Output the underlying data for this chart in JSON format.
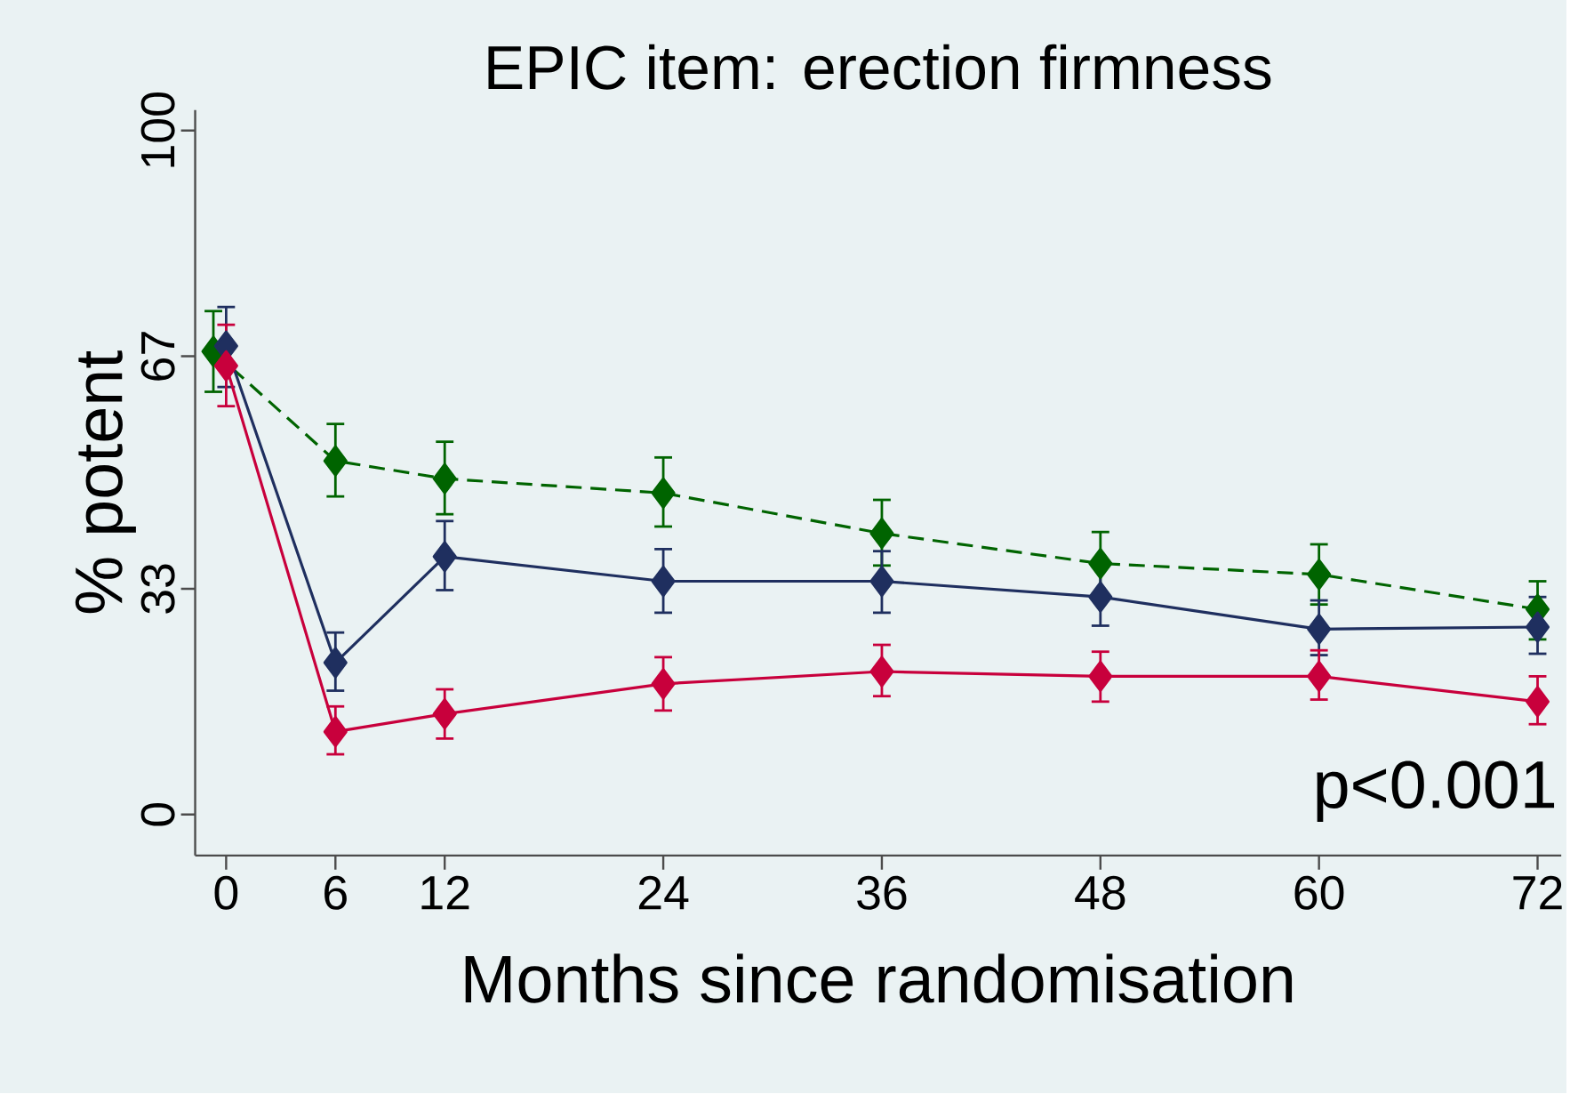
{
  "chart_data": {
    "type": "line",
    "title": "EPIC item: erection firmness",
    "xlabel": "Months since randomisation",
    "ylabel": "% potent",
    "x": [
      0,
      6,
      12,
      24,
      36,
      48,
      60,
      72
    ],
    "series": [
      {
        "color": "#006400",
        "line_style": "dashed",
        "x": [
          -0.7,
          6,
          12,
          24,
          36,
          48,
          60,
          72
        ],
        "values": [
          67.7,
          51.7,
          49.1,
          47.0,
          41.1,
          36.7,
          35.1,
          30.0
        ],
        "errors": [
          [
            61.8,
            73.6
          ],
          [
            46.5,
            57.1
          ],
          [
            43.9,
            54.5
          ],
          [
            42.1,
            52.2
          ],
          [
            36.4,
            46.0
          ],
          [
            32.3,
            41.3
          ],
          [
            30.7,
            39.5
          ],
          [
            25.6,
            34.1
          ]
        ]
      },
      {
        "color": "#1f2f5f",
        "line_style": "solid",
        "values": [
          68.5,
          22.2,
          37.7,
          34.1,
          34.1,
          31.8,
          27.1,
          27.4
        ],
        "errors": [
          [
            62.5,
            74.2
          ],
          [
            18.1,
            26.6
          ],
          [
            32.8,
            42.9
          ],
          [
            29.5,
            38.8
          ],
          [
            29.5,
            38.5
          ],
          [
            27.6,
            36.2
          ],
          [
            23.3,
            31.3
          ],
          [
            23.5,
            31.8
          ]
        ]
      },
      {
        "color": "#c8003c",
        "line_style": "solid",
        "values": [
          65.6,
          12.1,
          14.7,
          19.1,
          20.9,
          20.2,
          20.2,
          16.5
        ],
        "errors": [
          [
            59.7,
            71.6
          ],
          [
            8.8,
            15.8
          ],
          [
            11.1,
            18.3
          ],
          [
            15.2,
            23.0
          ],
          [
            17.3,
            24.8
          ],
          [
            16.5,
            23.8
          ],
          [
            16.8,
            24.0
          ],
          [
            13.2,
            20.2
          ]
        ]
      }
    ],
    "marker": "diamond",
    "grid": false,
    "xlim": [
      -1.7,
      73.3
    ],
    "ylim": [
      -6,
      103
    ],
    "xticks": [
      0,
      6,
      12,
      24,
      36,
      48,
      60,
      72
    ],
    "yticks": [
      0,
      33,
      67,
      100
    ],
    "annotations": [
      "p<0.001"
    ]
  }
}
